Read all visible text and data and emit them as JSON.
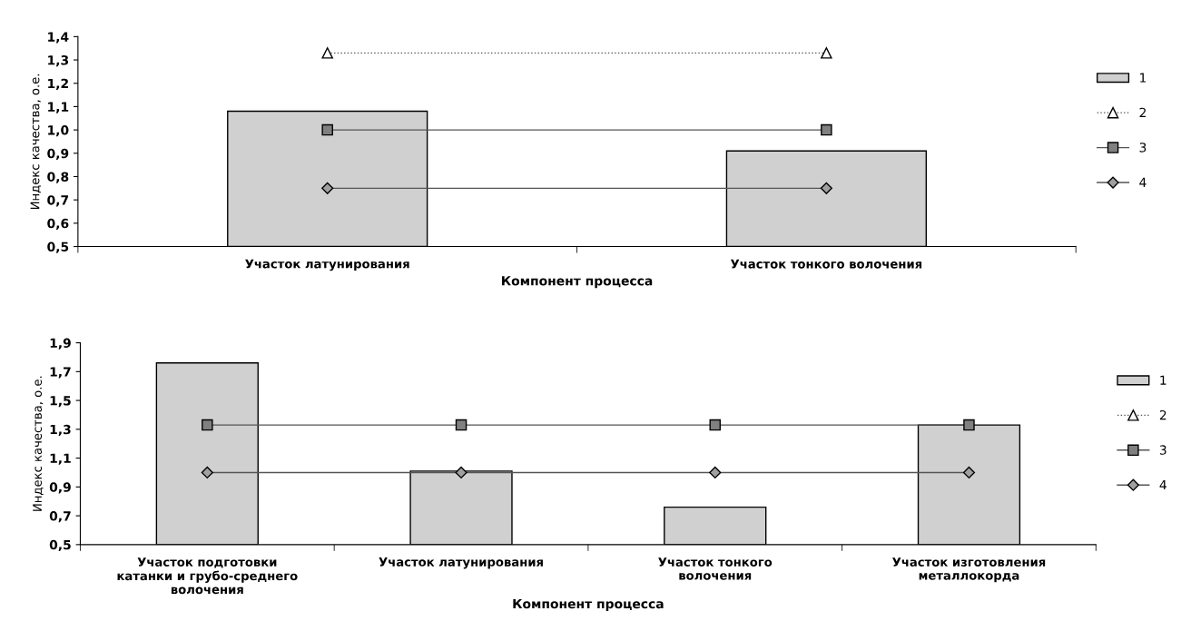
{
  "chart_data": [
    {
      "type": "bar",
      "xlabel": "Компонент процесса",
      "ylabel": "Индекс качества, о.е.",
      "categories": [
        "Участок латунирования",
        "Участок тонкого волочения"
      ],
      "series": [
        {
          "name": "1",
          "color": "#d0d0d0",
          "values": [
            1.08,
            0.91
          ]
        },
        {
          "name": "2",
          "type": "line",
          "color": "#ffffff",
          "marker": "triangle",
          "line_style": "dotted",
          "values": [
            1.33,
            1.33
          ]
        },
        {
          "name": "3",
          "type": "line",
          "color": "#808080",
          "marker": "square",
          "line_style": "solid",
          "values": [
            1.0,
            1.0
          ]
        },
        {
          "name": "4",
          "type": "line",
          "color": "#a0a0a0",
          "marker": "diamond",
          "line_style": "solid",
          "values": [
            0.75,
            0.75
          ]
        }
      ],
      "ylim": [
        0.5,
        1.4
      ],
      "yticks": [
        {
          "value": 0.5,
          "label": "0,5"
        },
        {
          "value": 0.6,
          "label": "0,6"
        },
        {
          "value": 0.7,
          "label": "0,7"
        },
        {
          "value": 0.8,
          "label": "0,8"
        },
        {
          "value": 0.9,
          "label": "0,9"
        },
        {
          "value": 1.0,
          "label": "1,0"
        },
        {
          "value": 1.1,
          "label": "1,1"
        },
        {
          "value": 1.2,
          "label": "1,2"
        },
        {
          "value": 1.3,
          "label": "1,3"
        },
        {
          "value": 1.4,
          "label": "1,4"
        }
      ],
      "grid": false,
      "legend": "right"
    },
    {
      "type": "bar",
      "xlabel": "Компонент процесса",
      "ylabel": "Индекс качества, о.е.",
      "categories": [
        "Участок подготовки\nкатанки и грубо-среднего\nволочения",
        "Участок латунирования",
        "Участок тонкого\nволочения",
        "Участок изготовления\nметаллокорда"
      ],
      "series": [
        {
          "name": "1",
          "color": "#d0d0d0",
          "values": [
            1.76,
            1.01,
            0.76,
            1.33
          ]
        },
        {
          "name": "2",
          "type": "line",
          "color": "#ffffff",
          "marker": "triangle",
          "line_style": "dotted",
          "values": [
            null,
            null,
            null,
            null
          ]
        },
        {
          "name": "3",
          "type": "line",
          "color": "#808080",
          "marker": "square",
          "line_style": "solid",
          "values": [
            1.33,
            1.33,
            1.33,
            1.33
          ]
        },
        {
          "name": "4",
          "type": "line",
          "color": "#a0a0a0",
          "marker": "diamond",
          "line_style": "solid",
          "values": [
            1.0,
            1.0,
            1.0,
            1.0
          ]
        }
      ],
      "ylim": [
        0.5,
        1.9
      ],
      "yticks": [
        {
          "value": 0.5,
          "label": "0,5"
        },
        {
          "value": 0.7,
          "label": "0,7"
        },
        {
          "value": 0.9,
          "label": "0,9"
        },
        {
          "value": 1.1,
          "label": "1,1"
        },
        {
          "value": 1.3,
          "label": "1,3"
        },
        {
          "value": 1.5,
          "label": "1,5"
        },
        {
          "value": 1.7,
          "label": "1,7"
        },
        {
          "value": 1.9,
          "label": "1,9"
        }
      ],
      "grid": false,
      "legend": "right"
    }
  ]
}
